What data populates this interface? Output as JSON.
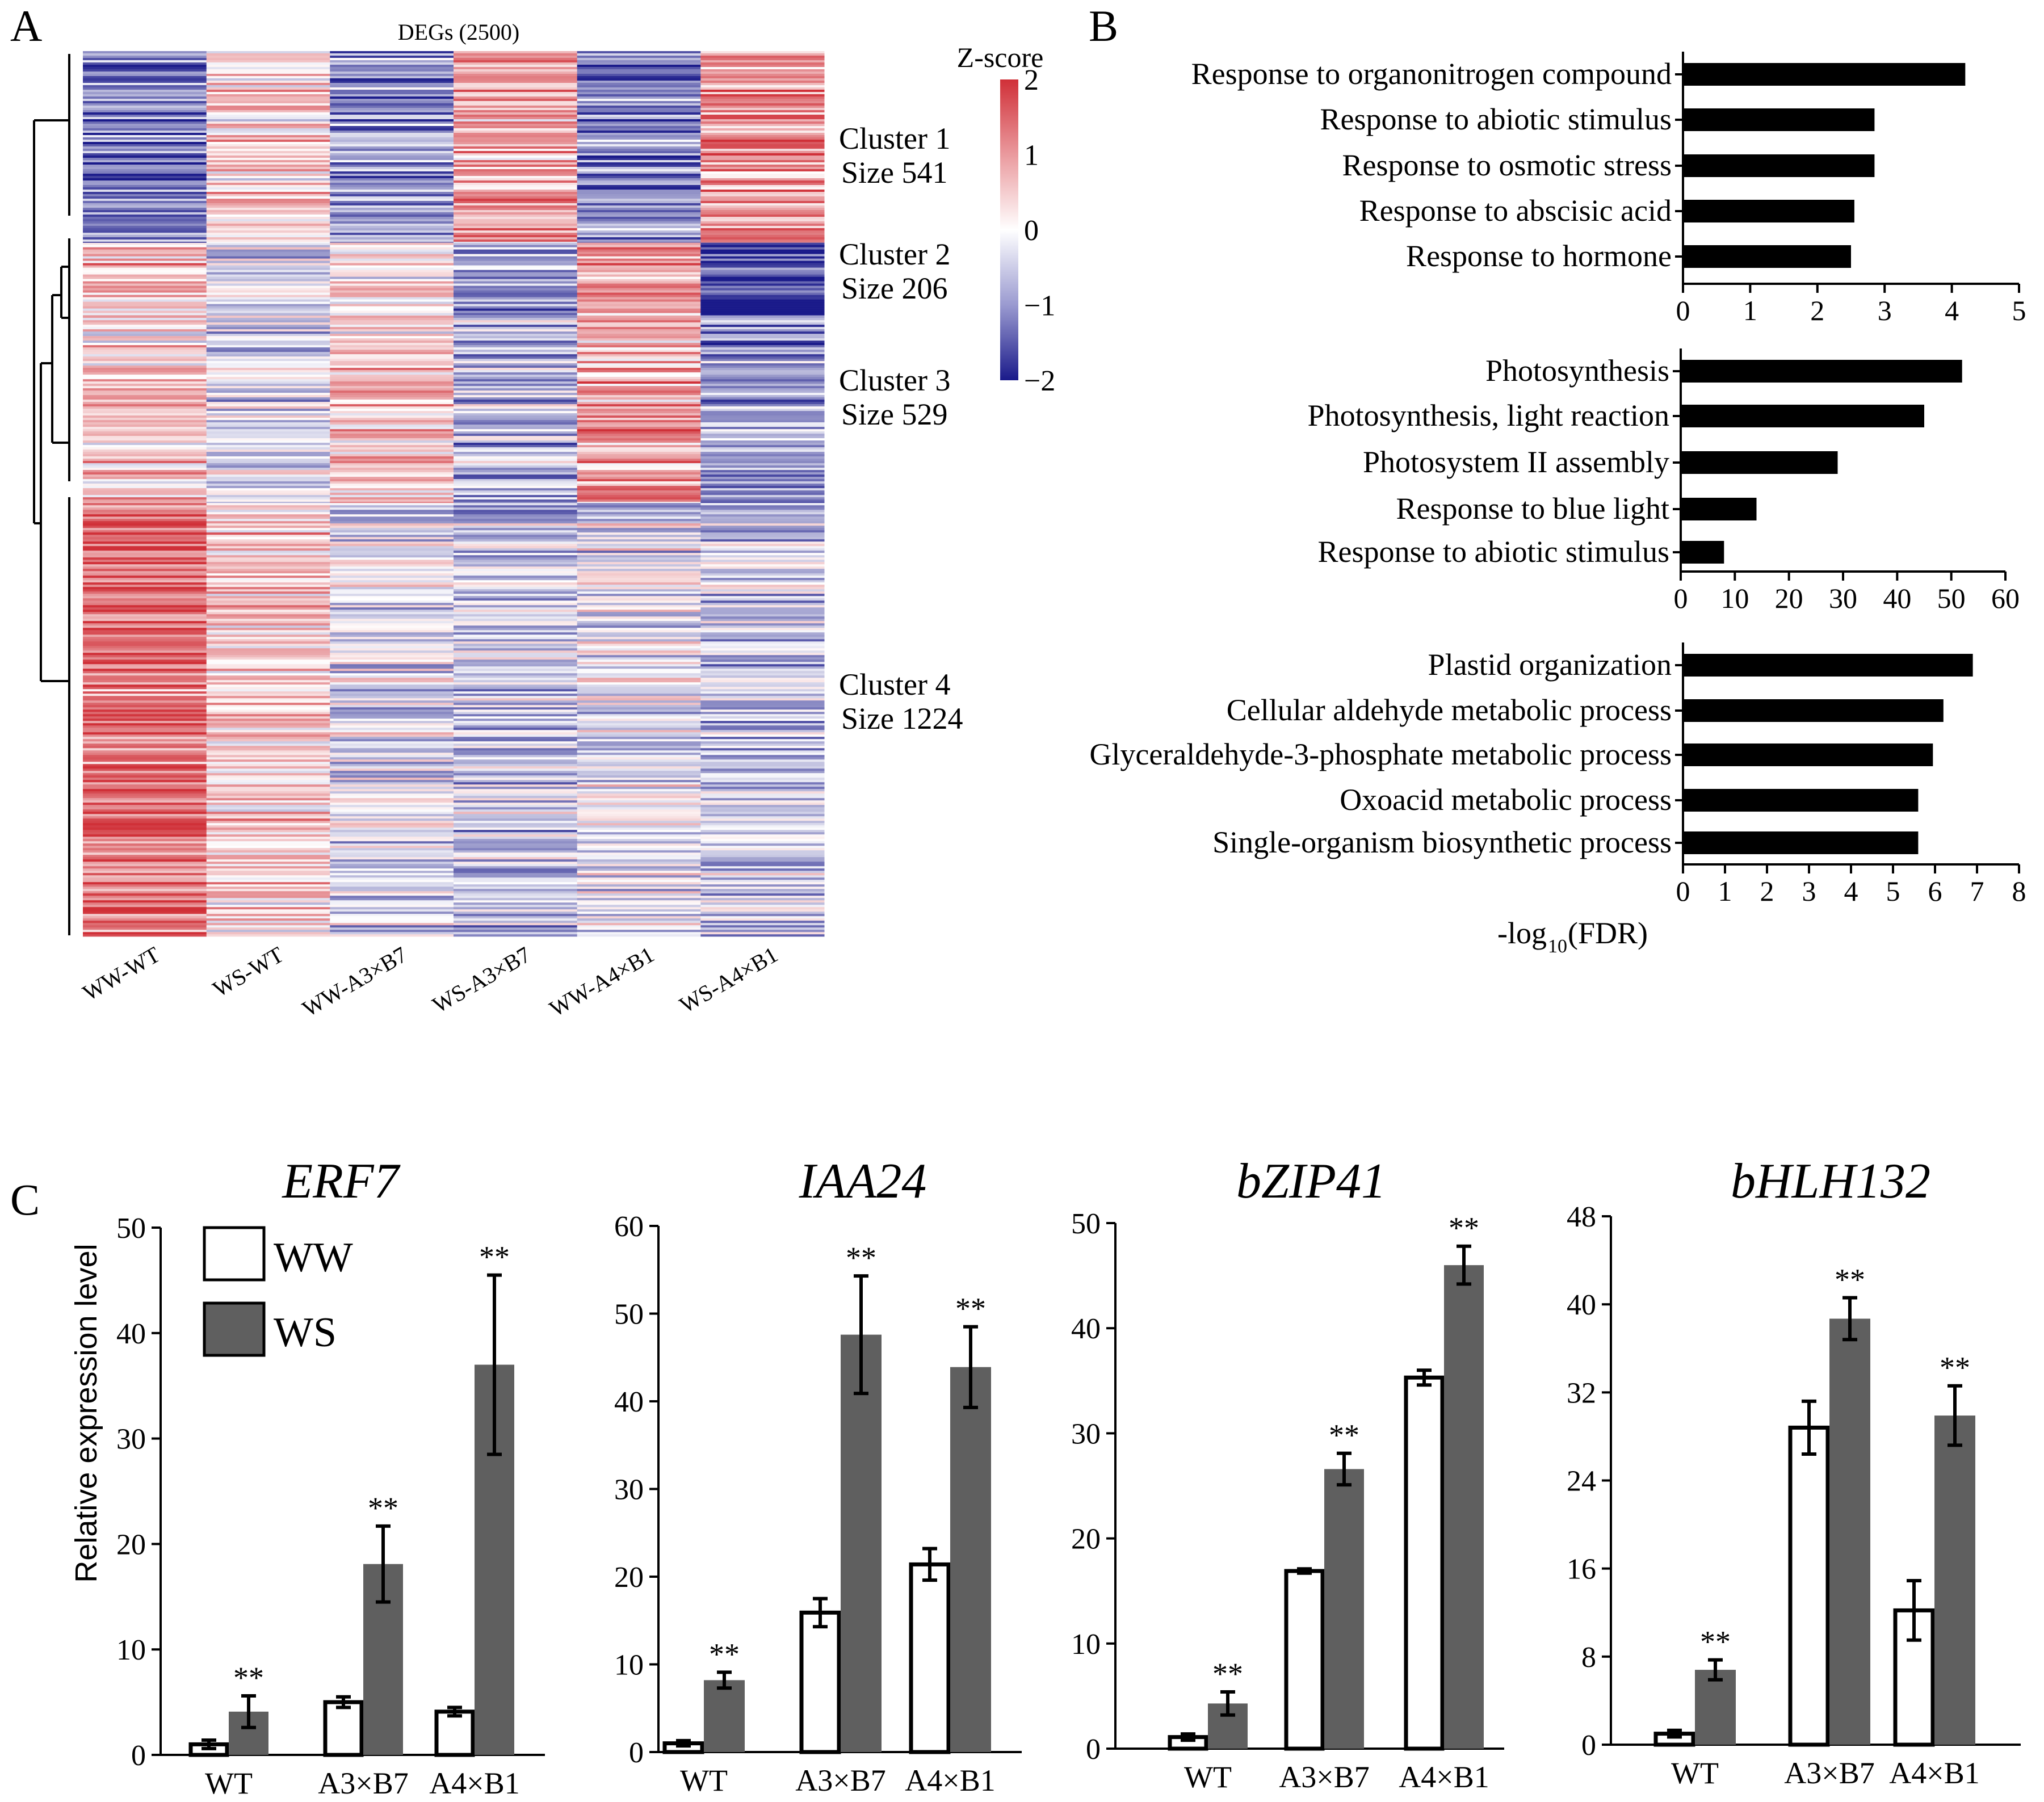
{
  "panels": {
    "a": "A",
    "b": "B",
    "c": "C"
  },
  "colors": {
    "bar_dark": "#000000",
    "ws_gray": "#5f5f5f",
    "high": "#d03038",
    "low": "#1a1a8a",
    "mid": "#ffffff"
  },
  "chart_data": [
    {
      "id": "A",
      "type": "heatmap",
      "title": "DEGs (2500)",
      "columns": [
        "WW-WT",
        "WS-WT",
        "WW-A3×B7",
        "WS-A3×B7",
        "WW-A4×B1",
        "WS-A4×B1"
      ],
      "colorbar": {
        "title": "Z-score",
        "ticks": [
          "2",
          "1",
          "0",
          "−1",
          "−2"
        ],
        "range": [
          -2,
          2
        ]
      },
      "clusters": [
        {
          "label": "Cluster 1",
          "size_label": "Size 541",
          "size": 541,
          "mean_z": [
            -1.2,
            0.4,
            -0.9,
            0.8,
            -1.1,
            1.0
          ]
        },
        {
          "label": "Cluster 2",
          "size_label": "Size 206",
          "size": 206,
          "mean_z": [
            0.6,
            -0.2,
            0.2,
            -0.7,
            0.9,
            -1.6
          ]
        },
        {
          "label": "Cluster 3",
          "size_label": "Size 529",
          "size": 529,
          "mean_z": [
            0.5,
            -0.3,
            0.5,
            -0.6,
            0.9,
            -0.9
          ]
        },
        {
          "label": "Cluster 4",
          "size_label": "Size 1224",
          "size": 1224,
          "mean_z": [
            1.3,
            0.5,
            -0.3,
            -0.5,
            -0.2,
            -0.5
          ]
        }
      ]
    },
    {
      "id": "B1",
      "type": "bar",
      "orientation": "horizontal",
      "categories": [
        "Response to organonitrogen compound",
        "Response to abiotic stimulus",
        "Response to osmotic stress",
        "Response to abscisic acid",
        "Response to hormone"
      ],
      "values": [
        4.2,
        2.85,
        2.85,
        2.55,
        2.5
      ],
      "xlim": [
        0,
        5
      ],
      "xticks": [
        "0",
        "1",
        "2",
        "3",
        "4",
        "5"
      ]
    },
    {
      "id": "B2",
      "type": "bar",
      "orientation": "horizontal",
      "categories": [
        "Photosynthesis",
        "Photosynthesis, light reaction",
        "Photosystem II assembly",
        "Response to blue light",
        "Response to abiotic stimulus"
      ],
      "values": [
        52,
        45,
        29,
        14,
        8
      ],
      "xlim": [
        0,
        60
      ],
      "xticks": [
        "0",
        "10",
        "20",
        "30",
        "40",
        "50",
        "60"
      ]
    },
    {
      "id": "B3",
      "type": "bar",
      "orientation": "horizontal",
      "categories": [
        "Plastid organization",
        "Cellular aldehyde metabolic process",
        "Glyceraldehyde-3-phosphate metabolic process",
        "Oxoacid metabolic process",
        "Single-organism biosynthetic process"
      ],
      "values": [
        6.9,
        6.2,
        5.95,
        5.6,
        5.6
      ],
      "xlim": [
        0,
        8
      ],
      "xticks": [
        "0",
        "1",
        "2",
        "3",
        "4",
        "5",
        "6",
        "7",
        "8"
      ],
      "xlabel_main": "-log",
      "xlabel_sub": "10",
      "xlabel_tail": " (FDR)"
    },
    {
      "id": "C1",
      "type": "bar",
      "title": "ERF7",
      "ylabel": "Relative expression level",
      "categories": [
        "WT",
        "A3×B7",
        "A4×B1"
      ],
      "ylim": [
        0,
        50
      ],
      "yticks": [
        "0",
        "10",
        "20",
        "30",
        "40",
        "50"
      ],
      "series": [
        {
          "name": "WW",
          "values": [
            1.0,
            5.0,
            4.1
          ],
          "errors": [
            0.4,
            0.5,
            0.4
          ]
        },
        {
          "name": "WS",
          "values": [
            4.1,
            18.1,
            37.0
          ],
          "errors": [
            1.5,
            3.6,
            8.5
          ]
        }
      ],
      "significance": [
        "**",
        "**",
        "**"
      ]
    },
    {
      "id": "C2",
      "type": "bar",
      "title": "IAA24",
      "categories": [
        "WT",
        "A3×B7",
        "A4×B1"
      ],
      "ylim": [
        0,
        60
      ],
      "yticks": [
        "0",
        "10",
        "20",
        "30",
        "40",
        "50",
        "60"
      ],
      "series": [
        {
          "name": "WW",
          "values": [
            1.0,
            15.9,
            21.4
          ],
          "errors": [
            0.3,
            1.6,
            1.8
          ]
        },
        {
          "name": "WS",
          "values": [
            8.2,
            47.6,
            43.9
          ],
          "errors": [
            0.9,
            6.7,
            4.6
          ]
        }
      ],
      "significance": [
        "**",
        "**",
        "**"
      ]
    },
    {
      "id": "C3",
      "type": "bar",
      "title": "bZIP41",
      "categories": [
        "WT",
        "A3×B7",
        "A4×B1"
      ],
      "ylim": [
        0,
        50
      ],
      "yticks": [
        "0",
        "10",
        "20",
        "30",
        "40",
        "50"
      ],
      "series": [
        {
          "name": "WW",
          "values": [
            1.1,
            16.9,
            35.3
          ],
          "errors": [
            0.3,
            0.2,
            0.7
          ]
        },
        {
          "name": "WS",
          "values": [
            4.3,
            26.6,
            46.0
          ],
          "errors": [
            1.1,
            1.5,
            1.8
          ]
        }
      ],
      "significance": [
        "**",
        "**",
        "**"
      ]
    },
    {
      "id": "C4",
      "type": "bar",
      "title": "bHLH132",
      "categories": [
        "WT",
        "A3×B7",
        "A4×B1"
      ],
      "ylim": [
        0,
        48
      ],
      "yticks": [
        "0",
        "8",
        "16",
        "24",
        "32",
        "40",
        "48"
      ],
      "series": [
        {
          "name": "WW",
          "values": [
            1.0,
            28.8,
            12.2
          ],
          "errors": [
            0.3,
            2.4,
            2.7
          ]
        },
        {
          "name": "WS",
          "values": [
            6.8,
            38.7,
            29.9
          ],
          "errors": [
            0.9,
            1.9,
            2.7
          ]
        }
      ],
      "significance": [
        "**",
        "**",
        "**"
      ]
    }
  ],
  "legend": {
    "ww": "WW",
    "ws": "WS"
  }
}
